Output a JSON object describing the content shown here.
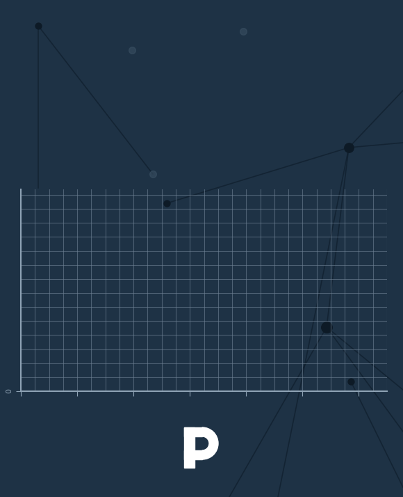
{
  "chart_data": {
    "type": "line",
    "x": [],
    "values": [],
    "xlim": [
      0,
      6.5
    ],
    "ylim": [
      0,
      3.6
    ],
    "xticks": [
      0,
      1,
      2,
      3,
      4,
      5,
      6
    ],
    "yticks": [
      0
    ],
    "grid": true,
    "tick_labels": "y",
    "color": "#8fa3b5"
  }
}
